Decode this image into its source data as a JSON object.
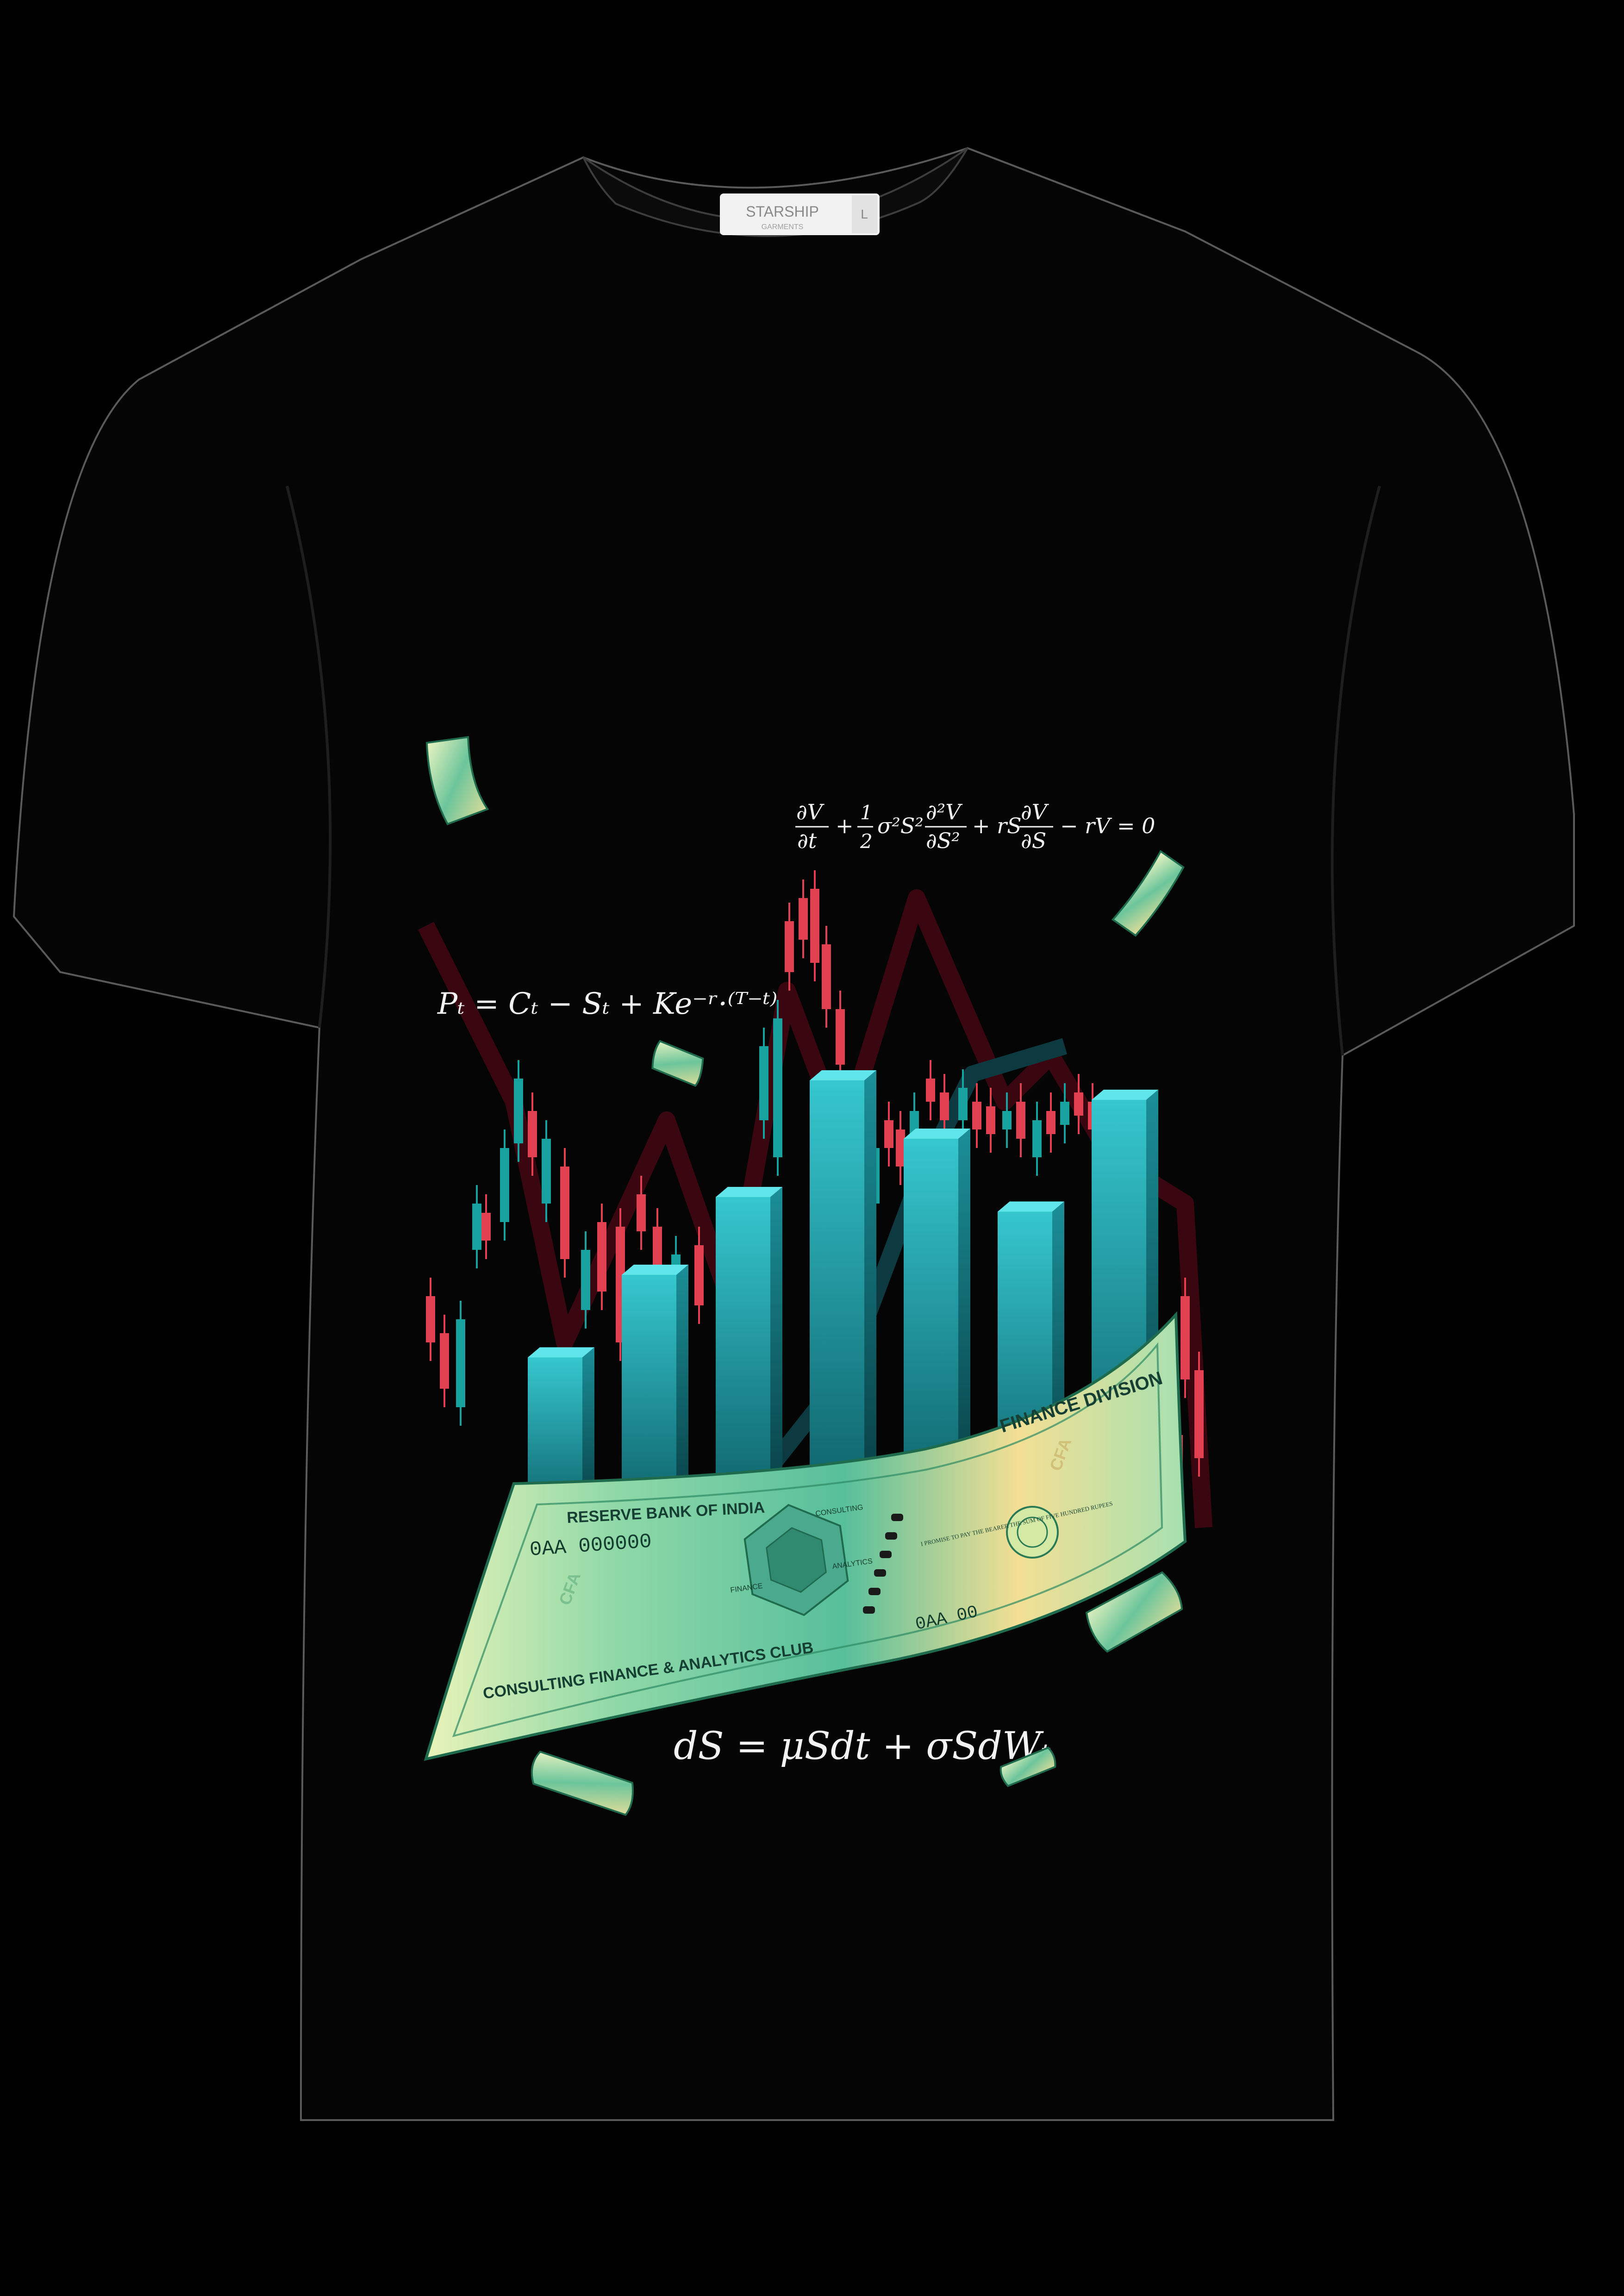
{
  "label_tag": {
    "brand": "STARSHIP",
    "sub": "GARMENTS",
    "size": "L"
  },
  "equations": {
    "black_scholes_pde": "∂V/∂t + ½σ²S² ∂²V/∂S² + rS ∂V/∂S − rV = 0",
    "put_call_parity": "Pₜ =  Cₜ − Sₜ + Ke⁻ʳ·⁽ᵀ⁻ᵗ⁾",
    "gbm": "dS = μSdt + σSdWₜ"
  },
  "banknote": {
    "issuer": "RESERVE BANK OF INDIA",
    "division": "FINANCE DIVISION",
    "club": "CONSULTING FINANCE & ANALYTICS CLUB",
    "serial_left": "0AA  000000",
    "serial_right": "0AA  00",
    "cfa_mark": "CFA",
    "promise": "I PROMISE TO PAY THE BEARER THE SUM OF FIVE HUNDRED RUPEES",
    "hex_labels": [
      "CONSULTING",
      "FINANCE",
      "ANALYTICS"
    ]
  },
  "bars_chart": {
    "bar_count": 7,
    "relative_heights": [
      0.35,
      0.52,
      0.68,
      0.92,
      0.8,
      0.65,
      0.88
    ]
  },
  "colors": {
    "shirt": "#050505",
    "background": "#000000",
    "bar_top": "#5fe5ea",
    "bar_front": "#1aa3ad",
    "candle_up": "#17a2a0",
    "candle_down": "#e0404f",
    "note_green": "#7fd3a6",
    "note_yellow": "#f2e6a0"
  }
}
